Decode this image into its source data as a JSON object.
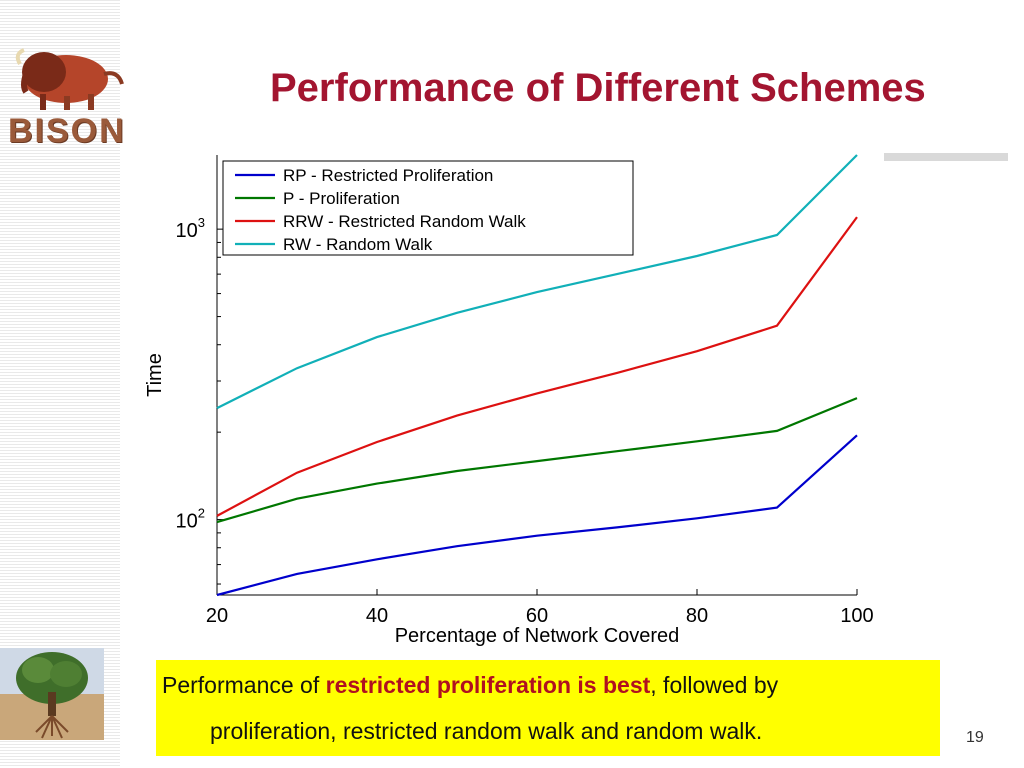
{
  "slide": {
    "title": "Performance of Different Schemes",
    "logo_text": "BISON",
    "page_number": "19"
  },
  "caption": {
    "part1": "Performance of ",
    "highlight": "restricted proliferation is best",
    "part2": ", followed by",
    "line2": "proliferation, restricted random walk and random walk."
  },
  "colors": {
    "title": "#a31530",
    "caption_bg": "#ffff00",
    "highlight": "#b01020"
  },
  "chart_data": {
    "type": "line",
    "xlabel": "Percentage of Network Covered",
    "ylabel": "Time",
    "yscale": "log",
    "xlim": [
      20,
      100
    ],
    "ylim": [
      55,
      1800
    ],
    "xticks": [
      20,
      40,
      60,
      80,
      100
    ],
    "xtick_labels": [
      "20",
      "40",
      "60",
      "80",
      "100"
    ],
    "yticks": [
      100,
      1000
    ],
    "ytick_labels": [
      {
        "base": "10",
        "exp": "2"
      },
      {
        "base": "10",
        "exp": "3"
      }
    ],
    "legend_position": "top-left",
    "x": [
      20,
      30,
      40,
      50,
      60,
      70,
      80,
      90,
      100
    ],
    "series": [
      {
        "name": "RP - Restricted Proliferation",
        "color": "#0000cc",
        "values": [
          55,
          65,
          73,
          81,
          88,
          94,
          101,
          110,
          195
        ]
      },
      {
        "name": "P - Proliferation",
        "color": "#007700",
        "values": [
          98,
          118,
          133,
          147,
          159,
          172,
          186,
          202,
          262
        ]
      },
      {
        "name": "RRW - Restricted Random Walk",
        "color": "#dd1111",
        "values": [
          103,
          145,
          185,
          228,
          272,
          320,
          380,
          465,
          1100
        ]
      },
      {
        "name": "RW - Random Walk",
        "color": "#11b0b8",
        "values": [
          242,
          332,
          425,
          515,
          607,
          700,
          808,
          955,
          1800
        ]
      }
    ]
  }
}
